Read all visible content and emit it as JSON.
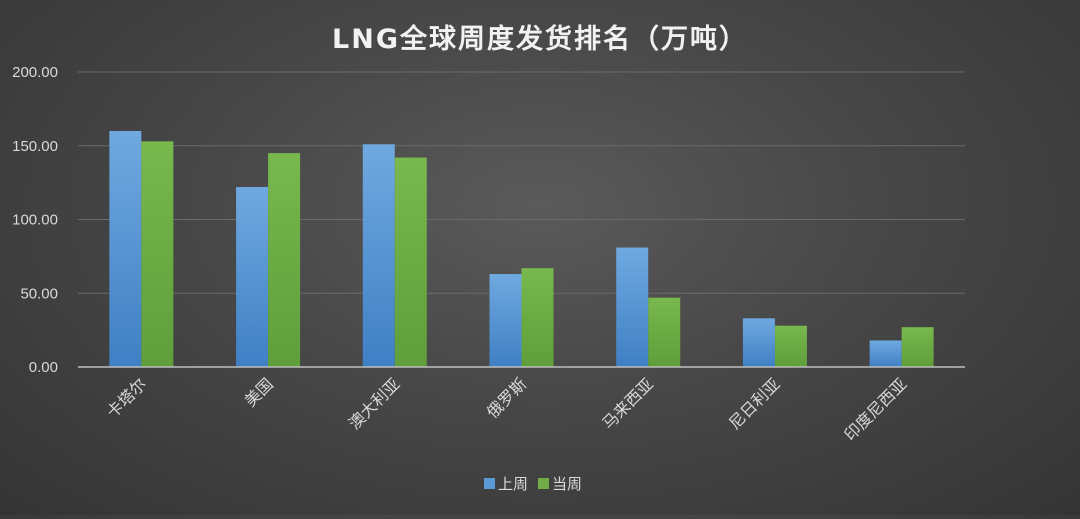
{
  "chart_data": {
    "type": "bar",
    "title": "LNG全球周度发货排名（万吨）",
    "xlabel": "",
    "ylabel": "",
    "ylim": [
      0,
      200
    ],
    "yticks": [
      0,
      50,
      100,
      150,
      200
    ],
    "ytick_labels": [
      "0.00",
      "50.00",
      "100.00",
      "150.00",
      "200.00"
    ],
    "grid": true,
    "legend_position": "bottom",
    "categories": [
      "卡塔尔",
      "美国",
      "澳大利亚",
      "俄罗斯",
      "马来西亚",
      "尼日利亚",
      "印度尼西亚"
    ],
    "series": [
      {
        "name": "上周",
        "color": "#5b9bd5",
        "values": [
          160,
          122,
          151,
          63,
          81,
          33,
          18
        ]
      },
      {
        "name": "当周",
        "color": "#70ad47",
        "values": [
          153,
          145,
          142,
          67,
          47,
          28,
          27
        ]
      }
    ]
  }
}
